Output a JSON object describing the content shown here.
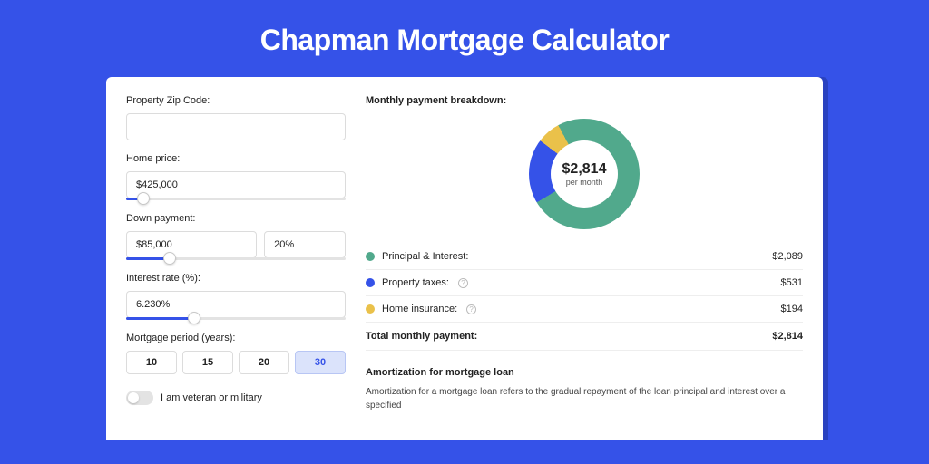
{
  "page": {
    "title": "Chapman Mortgage Calculator",
    "background_color": "#3552e8",
    "card_background": "#ffffff",
    "accent_color": "#3552e8"
  },
  "form": {
    "zip_label": "Property Zip Code:",
    "zip_value": "",
    "home_price_label": "Home price:",
    "home_price_value": "$425,000",
    "home_price_slider_pct": 8,
    "down_payment_label": "Down payment:",
    "down_payment_value": "$85,000",
    "down_payment_pct_value": "20%",
    "down_payment_slider_pct": 20,
    "interest_rate_label": "Interest rate (%):",
    "interest_rate_value": "6.230%",
    "interest_rate_slider_pct": 31,
    "mortgage_period_label": "Mortgage period (years):",
    "period_options": [
      "10",
      "15",
      "20",
      "30"
    ],
    "period_selected": "30",
    "veteran_label": "I am veteran or military",
    "veteran_on": false
  },
  "breakdown": {
    "title": "Monthly payment breakdown:",
    "donut": {
      "amount": "$2,814",
      "sub": "per month",
      "slices": [
        {
          "label": "principal_interest",
          "color": "#51a98c",
          "pct": 74.2
        },
        {
          "label": "property_taxes",
          "color": "#3552e8",
          "pct": 18.9
        },
        {
          "label": "home_insurance",
          "color": "#eac14a",
          "pct": 6.9
        }
      ],
      "hole_color": "#ffffff"
    },
    "items": [
      {
        "dot_color": "#51a98c",
        "label": "Principal & Interest:",
        "has_info": false,
        "value": "$2,089"
      },
      {
        "dot_color": "#3552e8",
        "label": "Property taxes:",
        "has_info": true,
        "value": "$531"
      },
      {
        "dot_color": "#eac14a",
        "label": "Home insurance:",
        "has_info": true,
        "value": "$194"
      }
    ],
    "total_label": "Total monthly payment:",
    "total_value": "$2,814"
  },
  "amortization": {
    "title": "Amortization for mortgage loan",
    "text": "Amortization for a mortgage loan refers to the gradual repayment of the loan principal and interest over a specified"
  }
}
